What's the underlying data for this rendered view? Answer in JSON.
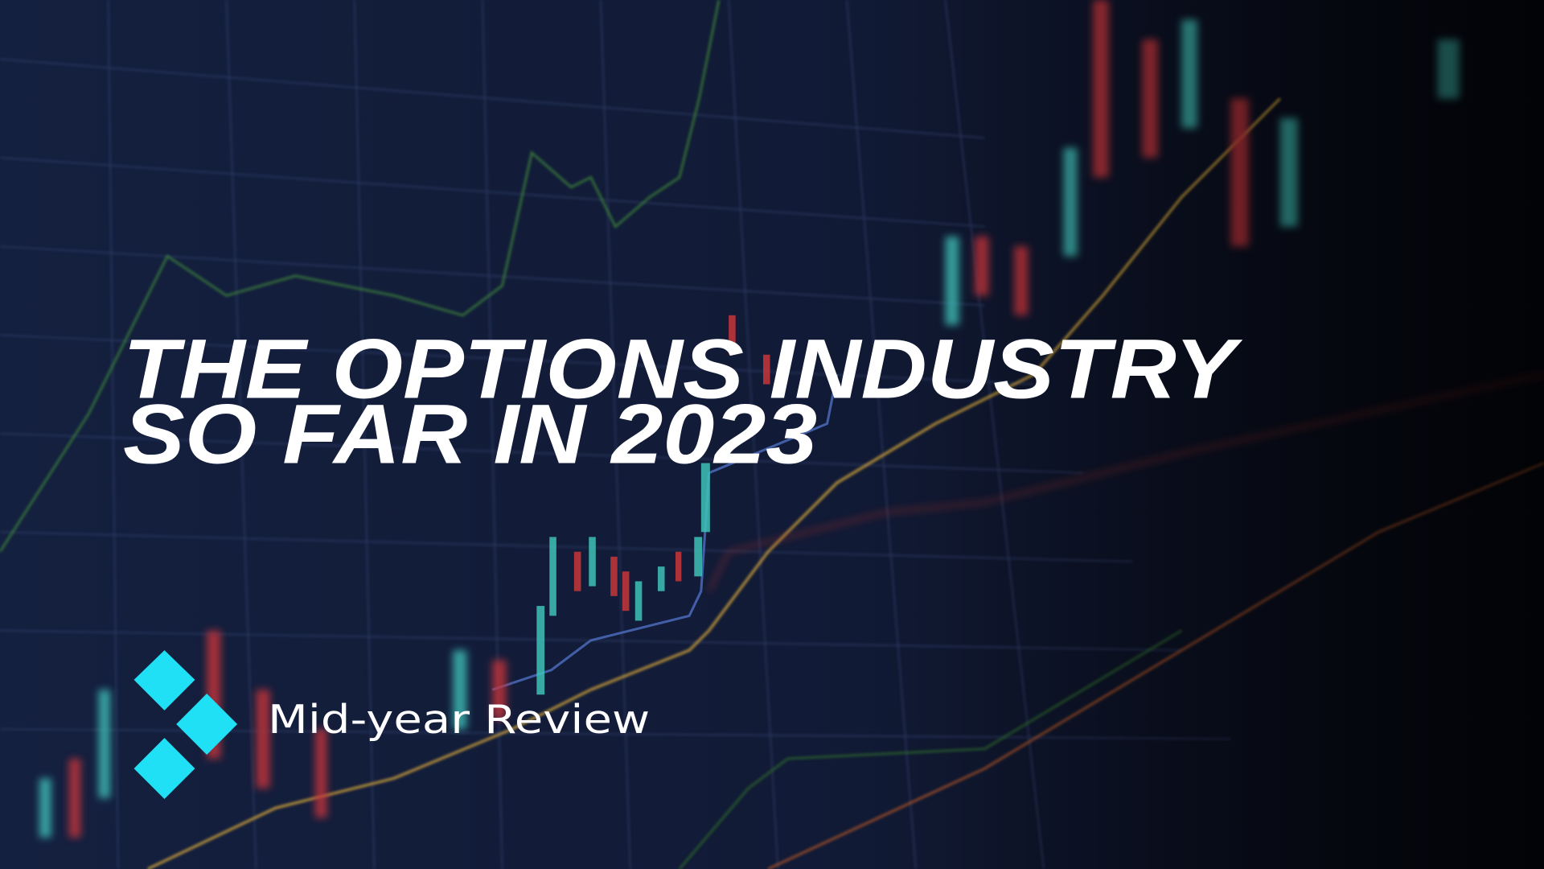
{
  "header": {
    "title_lines": [
      "THE OPTIONS INDUSTRY",
      "SO FAR IN 2023"
    ],
    "subtitle": "Mid-year Review"
  }
}
